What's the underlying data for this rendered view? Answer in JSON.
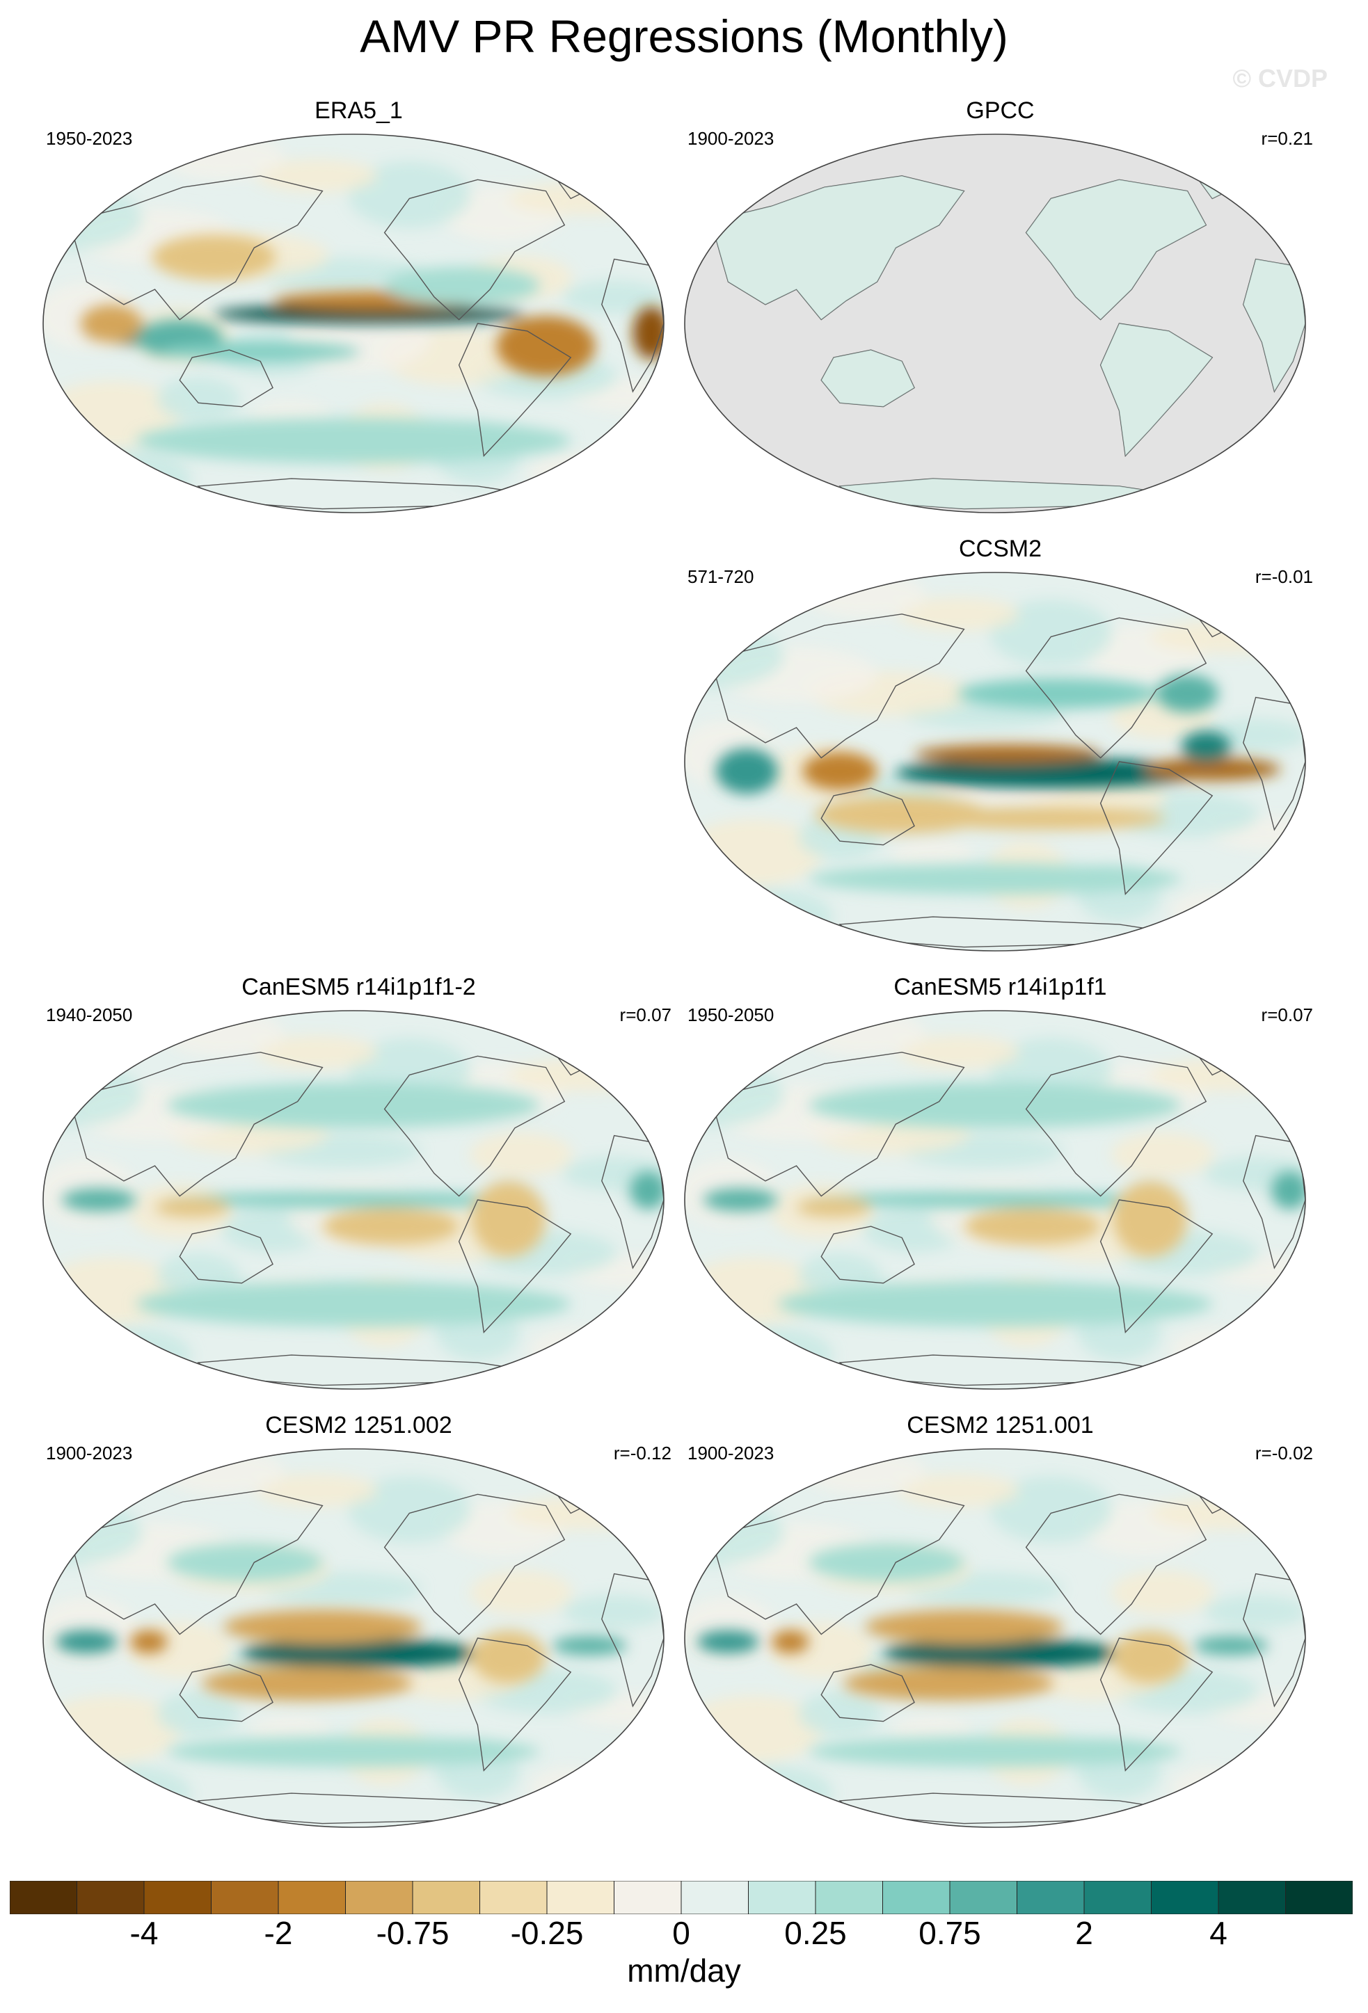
{
  "title": "AMV PR Regressions (Monthly)",
  "watermark": "© CVDP",
  "panels": [
    {
      "title": "ERA5_1",
      "period": "1950-2023",
      "r": "",
      "pattern": "obs",
      "land_only": false
    },
    {
      "title": "GPCC",
      "period": "1900-2023",
      "r": "r=0.21",
      "pattern": "obs",
      "land_only": true
    },
    {
      "title": "CCSM2",
      "period": "571-720",
      "r": "r=-0.01",
      "pattern": "ccsm",
      "land_only": false
    },
    {
      "title": "CanESM5 r14i1p1f1-2",
      "period": "1940-2050",
      "r": "r=0.07",
      "pattern": "canesm",
      "land_only": false
    },
    {
      "title": "CanESM5 r14i1p1f1",
      "period": "1950-2050",
      "r": "r=0.07",
      "pattern": "canesm",
      "land_only": false
    },
    {
      "title": "CESM2 1251.002",
      "period": "1900-2023",
      "r": "r=-0.12",
      "pattern": "cesm",
      "land_only": false
    },
    {
      "title": "CESM2 1251.001",
      "period": "1900-2023",
      "r": "r=-0.02",
      "pattern": "cesm",
      "land_only": false
    }
  ],
  "colorbar": {
    "units": "mm/day",
    "labels": [
      "-4",
      "-2",
      "-0.75",
      "-0.25",
      "0",
      "0.25",
      "0.75",
      "2",
      "4"
    ],
    "colors": [
      "#543005",
      "#6e3f0b",
      "#8c510a",
      "#a96a1e",
      "#bf812d",
      "#d4a55a",
      "#e3c482",
      "#f0dcae",
      "#f6ecd2",
      "#f4f1ea",
      "#e6f1ee",
      "#c7e9e3",
      "#a6ddd2",
      "#80cdc1",
      "#5ab2a6",
      "#35978f",
      "#1c8279",
      "#01665e",
      "#014e44",
      "#003c30"
    ]
  },
  "land_fill_color": "#e3e3e3"
}
